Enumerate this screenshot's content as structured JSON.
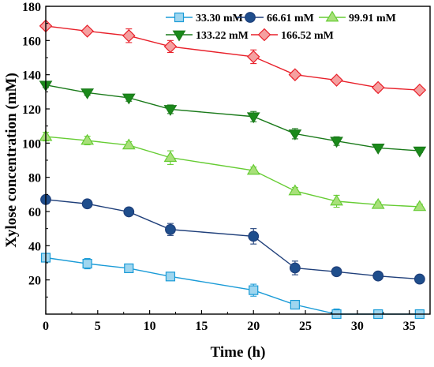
{
  "chart_data": {
    "type": "line",
    "xlabel": "Time (h)",
    "ylabel": "Xylose concentration (mM)",
    "xlim": [
      0,
      37
    ],
    "ylim": [
      0,
      180
    ],
    "xticks": [
      0,
      5,
      10,
      15,
      20,
      25,
      30,
      35
    ],
    "yticks": [
      20,
      40,
      60,
      80,
      100,
      120,
      140,
      160,
      180
    ],
    "grid": false,
    "legend_position": "top-right",
    "x": [
      0,
      4,
      8,
      12,
      20,
      24,
      28,
      32,
      36
    ],
    "series": [
      {
        "name": "33.30 mM",
        "marker": "square",
        "color": "#1a9bd7",
        "fill": "#9fd6ef",
        "values": [
          33.0,
          29.5,
          26.8,
          22.0,
          14.0,
          5.5,
          0,
          0,
          0
        ],
        "errors": [
          2.5,
          3.0,
          1.8,
          2.0,
          3.5,
          1.5,
          3.0,
          1.0,
          1.0
        ]
      },
      {
        "name": "66.61 mM",
        "marker": "circle",
        "color": "#1f3f7a",
        "fill": "#1f4e8c",
        "values": [
          67.0,
          64.5,
          59.8,
          49.5,
          45.5,
          27.0,
          24.8,
          22.3,
          20.5
        ],
        "errors": [
          1.5,
          1.2,
          1.8,
          3.5,
          4.5,
          4.0,
          1.0,
          1.0,
          1.0
        ]
      },
      {
        "name": "99.91 mM",
        "marker": "triangle-up",
        "color": "#66cc33",
        "fill": "#a8e07a",
        "values": [
          103.8,
          101.5,
          98.8,
          91.5,
          84.0,
          72.0,
          66.0,
          64.0,
          62.8
        ],
        "errors": [
          2.5,
          2.5,
          2.0,
          4.0,
          2.0,
          2.0,
          3.5,
          1.5,
          1.5
        ]
      },
      {
        "name": "133.22 mM",
        "marker": "triangle-down",
        "color": "#1a7a1a",
        "fill": "#1a8a1a",
        "values": [
          134.0,
          129.5,
          126.5,
          119.8,
          115.5,
          105.5,
          101.2,
          97.2,
          95.5
        ],
        "errors": [
          1.5,
          1.5,
          2.0,
          2.5,
          3.0,
          3.0,
          2.5,
          1.0,
          1.0
        ]
      },
      {
        "name": "166.52 mM",
        "marker": "diamond",
        "color": "#e8202a",
        "fill": "#f5a0a0",
        "values": [
          168.5,
          165.5,
          162.8,
          156.5,
          150.5,
          140.0,
          136.8,
          132.5,
          131.0
        ],
        "errors": [
          1.5,
          1.2,
          4.0,
          3.5,
          4.0,
          2.0,
          1.5,
          2.0,
          1.0
        ]
      }
    ]
  }
}
